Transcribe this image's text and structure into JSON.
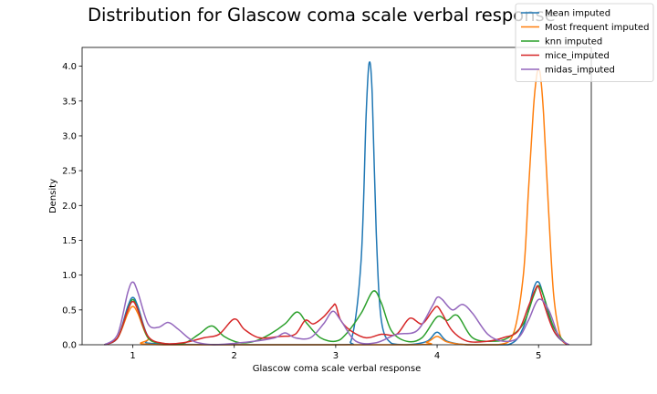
{
  "chart_data": {
    "type": "line",
    "title": "Distribution for Glascow coma scale verbal response",
    "xlabel": "Glascow coma scale verbal response",
    "ylabel": "Density",
    "xlim": [
      0.5,
      5.52
    ],
    "ylim": [
      0,
      4.27
    ],
    "xticks": [
      1,
      2,
      3,
      4,
      5
    ],
    "yticks": [
      0.0,
      0.5,
      1.0,
      1.5,
      2.0,
      2.5,
      3.0,
      3.5,
      4.0
    ],
    "ytick_labels": [
      "0.0",
      "0.5",
      "1.0",
      "1.5",
      "2.0",
      "2.5",
      "3.0",
      "3.5",
      "4.0"
    ],
    "grid": false,
    "legend_position": "upper-right",
    "series": [
      {
        "name": "Mean imputed",
        "color": "#1f77b4",
        "x": [
          0.72,
          0.85,
          0.95,
          1.0,
          1.05,
          1.15,
          1.3,
          3.0,
          3.15,
          3.25,
          3.3,
          3.33,
          3.36,
          3.4,
          3.45,
          3.55,
          3.7,
          3.9,
          4.0,
          4.1,
          4.3,
          4.7,
          4.85,
          4.95,
          5.0,
          5.05,
          5.15,
          5.28
        ],
        "y": [
          0.0,
          0.1,
          0.55,
          0.68,
          0.55,
          0.12,
          0.01,
          0.0,
          0.05,
          1.2,
          3.3,
          4.05,
          3.6,
          1.6,
          0.35,
          0.02,
          0.0,
          0.05,
          0.18,
          0.05,
          0.0,
          0.0,
          0.25,
          0.8,
          0.9,
          0.7,
          0.2,
          0.0
        ]
      },
      {
        "name": "Most frequent imputed",
        "color": "#ff7f0e",
        "x": [
          0.72,
          0.85,
          0.95,
          1.0,
          1.05,
          1.15,
          1.3,
          3.7,
          3.9,
          4.0,
          4.1,
          4.3,
          4.6,
          4.75,
          4.85,
          4.9,
          4.95,
          4.98,
          5.0,
          5.02,
          5.05,
          5.1,
          5.15,
          5.22,
          5.3
        ],
        "y": [
          0.0,
          0.1,
          0.45,
          0.55,
          0.45,
          0.1,
          0.0,
          0.0,
          0.04,
          0.12,
          0.04,
          0.0,
          0.0,
          0.15,
          1.0,
          2.2,
          3.4,
          3.85,
          3.95,
          3.85,
          3.3,
          1.9,
          0.7,
          0.1,
          0.0
        ]
      },
      {
        "name": "knn imputed",
        "color": "#2ca02c",
        "x": [
          0.72,
          0.85,
          0.95,
          1.0,
          1.05,
          1.15,
          1.3,
          1.5,
          1.65,
          1.78,
          1.9,
          2.05,
          2.2,
          2.35,
          2.5,
          2.62,
          2.72,
          2.85,
          3.0,
          3.1,
          3.25,
          3.37,
          3.45,
          3.55,
          3.7,
          3.85,
          4.0,
          4.1,
          4.2,
          4.35,
          4.55,
          4.7,
          4.85,
          4.95,
          5.0,
          5.05,
          5.15,
          5.28
        ],
        "y": [
          0.0,
          0.1,
          0.5,
          0.65,
          0.5,
          0.1,
          0.02,
          0.02,
          0.15,
          0.27,
          0.12,
          0.03,
          0.05,
          0.15,
          0.3,
          0.47,
          0.3,
          0.1,
          0.05,
          0.15,
          0.45,
          0.77,
          0.6,
          0.2,
          0.05,
          0.1,
          0.4,
          0.35,
          0.42,
          0.1,
          0.05,
          0.1,
          0.3,
          0.7,
          0.85,
          0.7,
          0.25,
          0.0
        ]
      },
      {
        "name": "mice_imputed",
        "color": "#d62728",
        "x": [
          0.72,
          0.85,
          0.95,
          1.0,
          1.05,
          1.15,
          1.3,
          1.5,
          1.7,
          1.85,
          2.0,
          2.1,
          2.25,
          2.45,
          2.6,
          2.7,
          2.78,
          2.88,
          2.97,
          3.0,
          3.05,
          3.15,
          3.3,
          3.45,
          3.6,
          3.73,
          3.85,
          3.95,
          4.0,
          4.05,
          4.15,
          4.3,
          4.5,
          4.65,
          4.8,
          4.9,
          4.97,
          5.0,
          5.05,
          5.15,
          5.28
        ],
        "y": [
          0.0,
          0.1,
          0.5,
          0.62,
          0.5,
          0.12,
          0.02,
          0.03,
          0.1,
          0.15,
          0.37,
          0.22,
          0.1,
          0.12,
          0.15,
          0.35,
          0.3,
          0.4,
          0.55,
          0.57,
          0.35,
          0.2,
          0.1,
          0.15,
          0.15,
          0.38,
          0.3,
          0.48,
          0.55,
          0.45,
          0.2,
          0.05,
          0.05,
          0.1,
          0.2,
          0.55,
          0.8,
          0.83,
          0.6,
          0.2,
          0.0
        ]
      },
      {
        "name": "midas_imputed",
        "color": "#9467bd",
        "x": [
          0.72,
          0.85,
          0.95,
          1.0,
          1.05,
          1.15,
          1.25,
          1.35,
          1.45,
          1.6,
          1.8,
          2.0,
          2.2,
          2.4,
          2.5,
          2.6,
          2.75,
          2.88,
          2.97,
          3.05,
          3.2,
          3.4,
          3.6,
          3.8,
          3.95,
          4.0,
          4.05,
          4.15,
          4.25,
          4.35,
          4.5,
          4.65,
          4.8,
          4.9,
          5.0,
          5.1,
          5.2,
          5.3
        ],
        "y": [
          0.0,
          0.15,
          0.75,
          0.9,
          0.75,
          0.3,
          0.25,
          0.32,
          0.22,
          0.05,
          0.0,
          0.02,
          0.05,
          0.1,
          0.17,
          0.1,
          0.1,
          0.3,
          0.48,
          0.35,
          0.05,
          0.03,
          0.15,
          0.2,
          0.55,
          0.68,
          0.65,
          0.5,
          0.58,
          0.45,
          0.15,
          0.05,
          0.1,
          0.35,
          0.65,
          0.5,
          0.12,
          0.0
        ]
      }
    ]
  }
}
